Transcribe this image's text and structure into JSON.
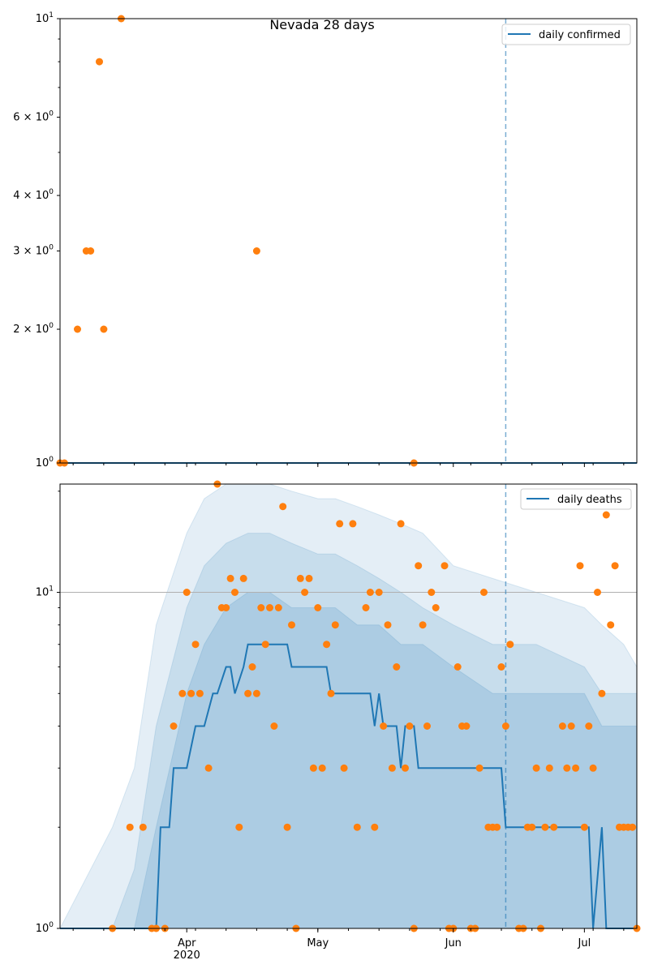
{
  "chart_data": [
    {
      "type": "scatter",
      "title": "Nevada 28 days",
      "yscale": "log",
      "ylim": [
        1,
        10
      ],
      "xlim": [
        "2020-03-03",
        "2020-07-13"
      ],
      "y_tick_labels": [
        {
          "value": 10,
          "label": "10^1"
        },
        {
          "value": 6,
          "label": "6×10^0"
        },
        {
          "value": 4,
          "label": "4×10^0"
        },
        {
          "value": 3,
          "label": "3×10^0"
        },
        {
          "value": 2,
          "label": "2×10^0"
        },
        {
          "value": 1,
          "label": "10^0"
        }
      ],
      "legend": {
        "placement": "top-right",
        "entries": [
          "daily confirmed"
        ]
      },
      "vline_date": "2020-06-13",
      "series": [
        {
          "name": "daily confirmed",
          "kind": "line",
          "color": "#1f77b4",
          "x": [
            "2020-03-03",
            "2020-07-13"
          ],
          "y": [
            1,
            1
          ]
        },
        {
          "kind": "scatter",
          "color": "#ff7f0e",
          "x": [
            "2020-03-03",
            "2020-03-04",
            "2020-03-07",
            "2020-03-09",
            "2020-03-10",
            "2020-03-12",
            "2020-03-13",
            "2020-03-17",
            "2020-04-17",
            "2020-05-23"
          ],
          "y": [
            1,
            1,
            2,
            3,
            3,
            8,
            2,
            10,
            3,
            1
          ]
        }
      ]
    },
    {
      "type": "scatter",
      "yscale": "log",
      "ylim": [
        1,
        21
      ],
      "xlim": [
        "2020-03-03",
        "2020-07-13"
      ],
      "y_tick_labels": [
        {
          "value": 10,
          "label": "10^1"
        },
        {
          "value": 1,
          "label": "10^0"
        }
      ],
      "x_tick_labels": [
        {
          "date": "2020-04-01",
          "label": "Apr",
          "sublabel": "2020"
        },
        {
          "date": "2020-05-01",
          "label": "May"
        },
        {
          "date": "2020-06-01",
          "label": "Jun"
        },
        {
          "date": "2020-07-01",
          "label": "Jul"
        }
      ],
      "grid_y_at": 10,
      "legend": {
        "placement": "top-right",
        "entries": [
          "daily deaths"
        ]
      },
      "vline_date": "2020-06-13",
      "bands": {
        "color": "#1f77b4",
        "x": [
          "2020-03-03",
          "2020-03-15",
          "2020-03-20",
          "2020-03-25",
          "2020-04-01",
          "2020-04-05",
          "2020-04-10",
          "2020-04-15",
          "2020-04-20",
          "2020-04-25",
          "2020-05-01",
          "2020-05-05",
          "2020-05-10",
          "2020-05-15",
          "2020-05-20",
          "2020-05-25",
          "2020-06-01",
          "2020-06-10",
          "2020-06-20",
          "2020-07-01",
          "2020-07-05",
          "2020-07-10",
          "2020-07-13"
        ],
        "outer_low": [
          1,
          1,
          1,
          1,
          1,
          1,
          1,
          1,
          1,
          1,
          1,
          1,
          1,
          1,
          1,
          1,
          1,
          1,
          1,
          1,
          1,
          1,
          1
        ],
        "outer_high": [
          1,
          2,
          3,
          8,
          15,
          19,
          21,
          21,
          21,
          20,
          19,
          19,
          18,
          17,
          16,
          15,
          12,
          11,
          10,
          9,
          8,
          7,
          6
        ],
        "mid_low": [
          1,
          1,
          1,
          1,
          1,
          1,
          1,
          1,
          1,
          1,
          1,
          1,
          1,
          1,
          1,
          1,
          1,
          1,
          1,
          1,
          1,
          1,
          1
        ],
        "mid_high": [
          1,
          1,
          1.5,
          4,
          9,
          12,
          14,
          15,
          15,
          14,
          13,
          13,
          12,
          11,
          10,
          9,
          8,
          7,
          7,
          6,
          5,
          5,
          5
        ],
        "inner_low": [
          1,
          1,
          1,
          1,
          1,
          1,
          1,
          1,
          1,
          1,
          1,
          1,
          1,
          1,
          1,
          1,
          1,
          1,
          1,
          1,
          1,
          1,
          1
        ],
        "inner_high": [
          1,
          1,
          1,
          2,
          5,
          7,
          9,
          10,
          10,
          9,
          9,
          9,
          8,
          8,
          7,
          7,
          6,
          5,
          5,
          5,
          4,
          4,
          4
        ]
      },
      "series": [
        {
          "name": "daily deaths",
          "kind": "line",
          "color": "#1f77b4",
          "x": [
            "2020-03-03",
            "2020-03-25",
            "2020-03-26",
            "2020-03-28",
            "2020-03-29",
            "2020-04-01",
            "2020-04-03",
            "2020-04-05",
            "2020-04-07",
            "2020-04-08",
            "2020-04-10",
            "2020-04-11",
            "2020-04-12",
            "2020-04-14",
            "2020-04-15",
            "2020-04-17",
            "2020-04-24",
            "2020-04-25",
            "2020-05-03",
            "2020-05-04",
            "2020-05-13",
            "2020-05-14",
            "2020-05-15",
            "2020-05-16",
            "2020-05-19",
            "2020-05-20",
            "2020-05-21",
            "2020-05-23",
            "2020-05-24",
            "2020-05-25",
            "2020-05-26",
            "2020-06-12",
            "2020-06-13",
            "2020-07-02",
            "2020-07-03",
            "2020-07-05",
            "2020-07-06",
            "2020-07-13"
          ],
          "y": [
            1,
            1,
            2,
            2,
            3,
            3,
            4,
            4,
            5,
            5,
            6,
            6,
            5,
            6,
            7,
            7,
            7,
            6,
            6,
            5,
            5,
            4,
            5,
            4,
            4,
            3,
            4,
            4,
            3,
            3,
            3,
            3,
            2,
            2,
            1,
            2,
            1,
            1
          ]
        },
        {
          "kind": "scatter",
          "color": "#ff7f0e",
          "x": [
            "2020-03-15",
            "2020-03-19",
            "2020-03-22",
            "2020-03-24",
            "2020-03-25",
            "2020-03-27",
            "2020-03-29",
            "2020-03-31",
            "2020-04-01",
            "2020-04-02",
            "2020-04-03",
            "2020-04-04",
            "2020-04-06",
            "2020-04-08",
            "2020-04-09",
            "2020-04-10",
            "2020-04-11",
            "2020-04-12",
            "2020-04-13",
            "2020-04-14",
            "2020-04-15",
            "2020-04-16",
            "2020-04-17",
            "2020-04-18",
            "2020-04-19",
            "2020-04-20",
            "2020-04-21",
            "2020-04-22",
            "2020-04-23",
            "2020-04-24",
            "2020-04-25",
            "2020-04-26",
            "2020-04-27",
            "2020-04-28",
            "2020-04-29",
            "2020-04-30",
            "2020-05-01",
            "2020-05-02",
            "2020-05-03",
            "2020-05-04",
            "2020-05-05",
            "2020-05-06",
            "2020-05-07",
            "2020-05-09",
            "2020-05-10",
            "2020-05-12",
            "2020-05-13",
            "2020-05-14",
            "2020-05-15",
            "2020-05-16",
            "2020-05-17",
            "2020-05-18",
            "2020-05-19",
            "2020-05-20",
            "2020-05-21",
            "2020-05-22",
            "2020-05-23",
            "2020-05-24",
            "2020-05-25",
            "2020-05-26",
            "2020-05-27",
            "2020-05-28",
            "2020-05-30",
            "2020-05-31",
            "2020-06-01",
            "2020-06-02",
            "2020-06-03",
            "2020-06-04",
            "2020-06-05",
            "2020-06-06",
            "2020-06-07",
            "2020-06-08",
            "2020-06-09",
            "2020-06-10",
            "2020-06-11",
            "2020-06-12",
            "2020-06-13",
            "2020-06-14",
            "2020-06-16",
            "2020-06-17",
            "2020-06-18",
            "2020-06-19",
            "2020-06-20",
            "2020-06-21",
            "2020-06-22",
            "2020-06-23",
            "2020-06-24",
            "2020-06-26",
            "2020-06-27",
            "2020-06-28",
            "2020-06-29",
            "2020-06-30",
            "2020-07-01",
            "2020-07-02",
            "2020-07-03",
            "2020-07-04",
            "2020-07-05",
            "2020-07-06",
            "2020-07-07",
            "2020-07-08",
            "2020-07-09",
            "2020-07-10",
            "2020-07-11",
            "2020-07-12",
            "2020-07-13"
          ],
          "y": [
            1,
            2,
            2,
            1,
            1,
            1,
            4,
            5,
            10,
            5,
            7,
            5,
            3,
            21,
            9,
            9,
            11,
            10,
            2,
            11,
            5,
            6,
            5,
            9,
            7,
            9,
            4,
            9,
            18,
            2,
            8,
            1,
            11,
            10,
            11,
            3,
            9,
            3,
            7,
            5,
            8,
            16,
            3,
            16,
            2,
            9,
            10,
            2,
            10,
            4,
            8,
            3,
            6,
            16,
            3,
            4,
            1,
            12,
            8,
            4,
            10,
            9,
            12,
            1,
            1,
            6,
            4,
            4,
            1,
            1,
            3,
            10,
            2,
            2,
            2,
            6,
            4,
            7,
            1,
            1,
            2,
            2,
            3,
            1,
            2,
            3,
            2,
            4,
            3,
            4,
            3,
            12,
            2,
            4,
            3,
            10,
            5,
            17,
            8,
            12,
            2,
            2,
            2,
            2,
            1
          ]
        }
      ]
    }
  ],
  "panels": {
    "top": {
      "title": "Nevada 28 days",
      "legend_label": "daily confirmed"
    },
    "bottom": {
      "legend_label": "daily deaths"
    }
  },
  "ticks": {
    "top_y": [
      {
        "mant": "",
        "exp": "1",
        "base": "10",
        "val": 10
      },
      {
        "mant": "6 × ",
        "exp": "0",
        "base": "10",
        "val": 6
      },
      {
        "mant": "4 × ",
        "exp": "0",
        "base": "10",
        "val": 4
      },
      {
        "mant": "3 × ",
        "exp": "0",
        "base": "10",
        "val": 3
      },
      {
        "mant": "2 × ",
        "exp": "0",
        "base": "10",
        "val": 2
      },
      {
        "mant": "",
        "exp": "0",
        "base": "10",
        "val": 1
      }
    ],
    "bottom_y": [
      {
        "mant": "",
        "exp": "1",
        "base": "10",
        "val": 10
      },
      {
        "mant": "",
        "exp": "0",
        "base": "10",
        "val": 1
      }
    ],
    "x": [
      {
        "date": "2020-04-01",
        "label": "Apr",
        "sub": "2020"
      },
      {
        "date": "2020-05-01",
        "label": "May",
        "sub": ""
      },
      {
        "date": "2020-06-01",
        "label": "Jun",
        "sub": ""
      },
      {
        "date": "2020-07-01",
        "label": "Jul",
        "sub": ""
      }
    ]
  }
}
